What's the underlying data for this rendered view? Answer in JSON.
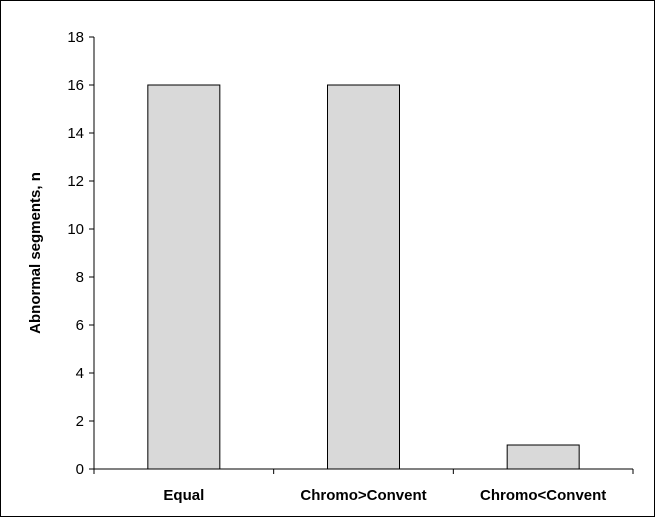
{
  "chart_data": {
    "type": "bar",
    "title": "",
    "xlabel": "",
    "ylabel": "Abnormal segments, n",
    "categories": [
      "Equal",
      "Chromo>Convent",
      "Chromo<Convent"
    ],
    "values": [
      16,
      16,
      1
    ],
    "ylim": [
      0,
      18
    ],
    "yticks": [
      0,
      2,
      4,
      6,
      8,
      10,
      12,
      14,
      16,
      18
    ],
    "grid": false,
    "legend": "none",
    "bar_color": "#d9d9d9",
    "bar_edge_color": "#000000"
  }
}
